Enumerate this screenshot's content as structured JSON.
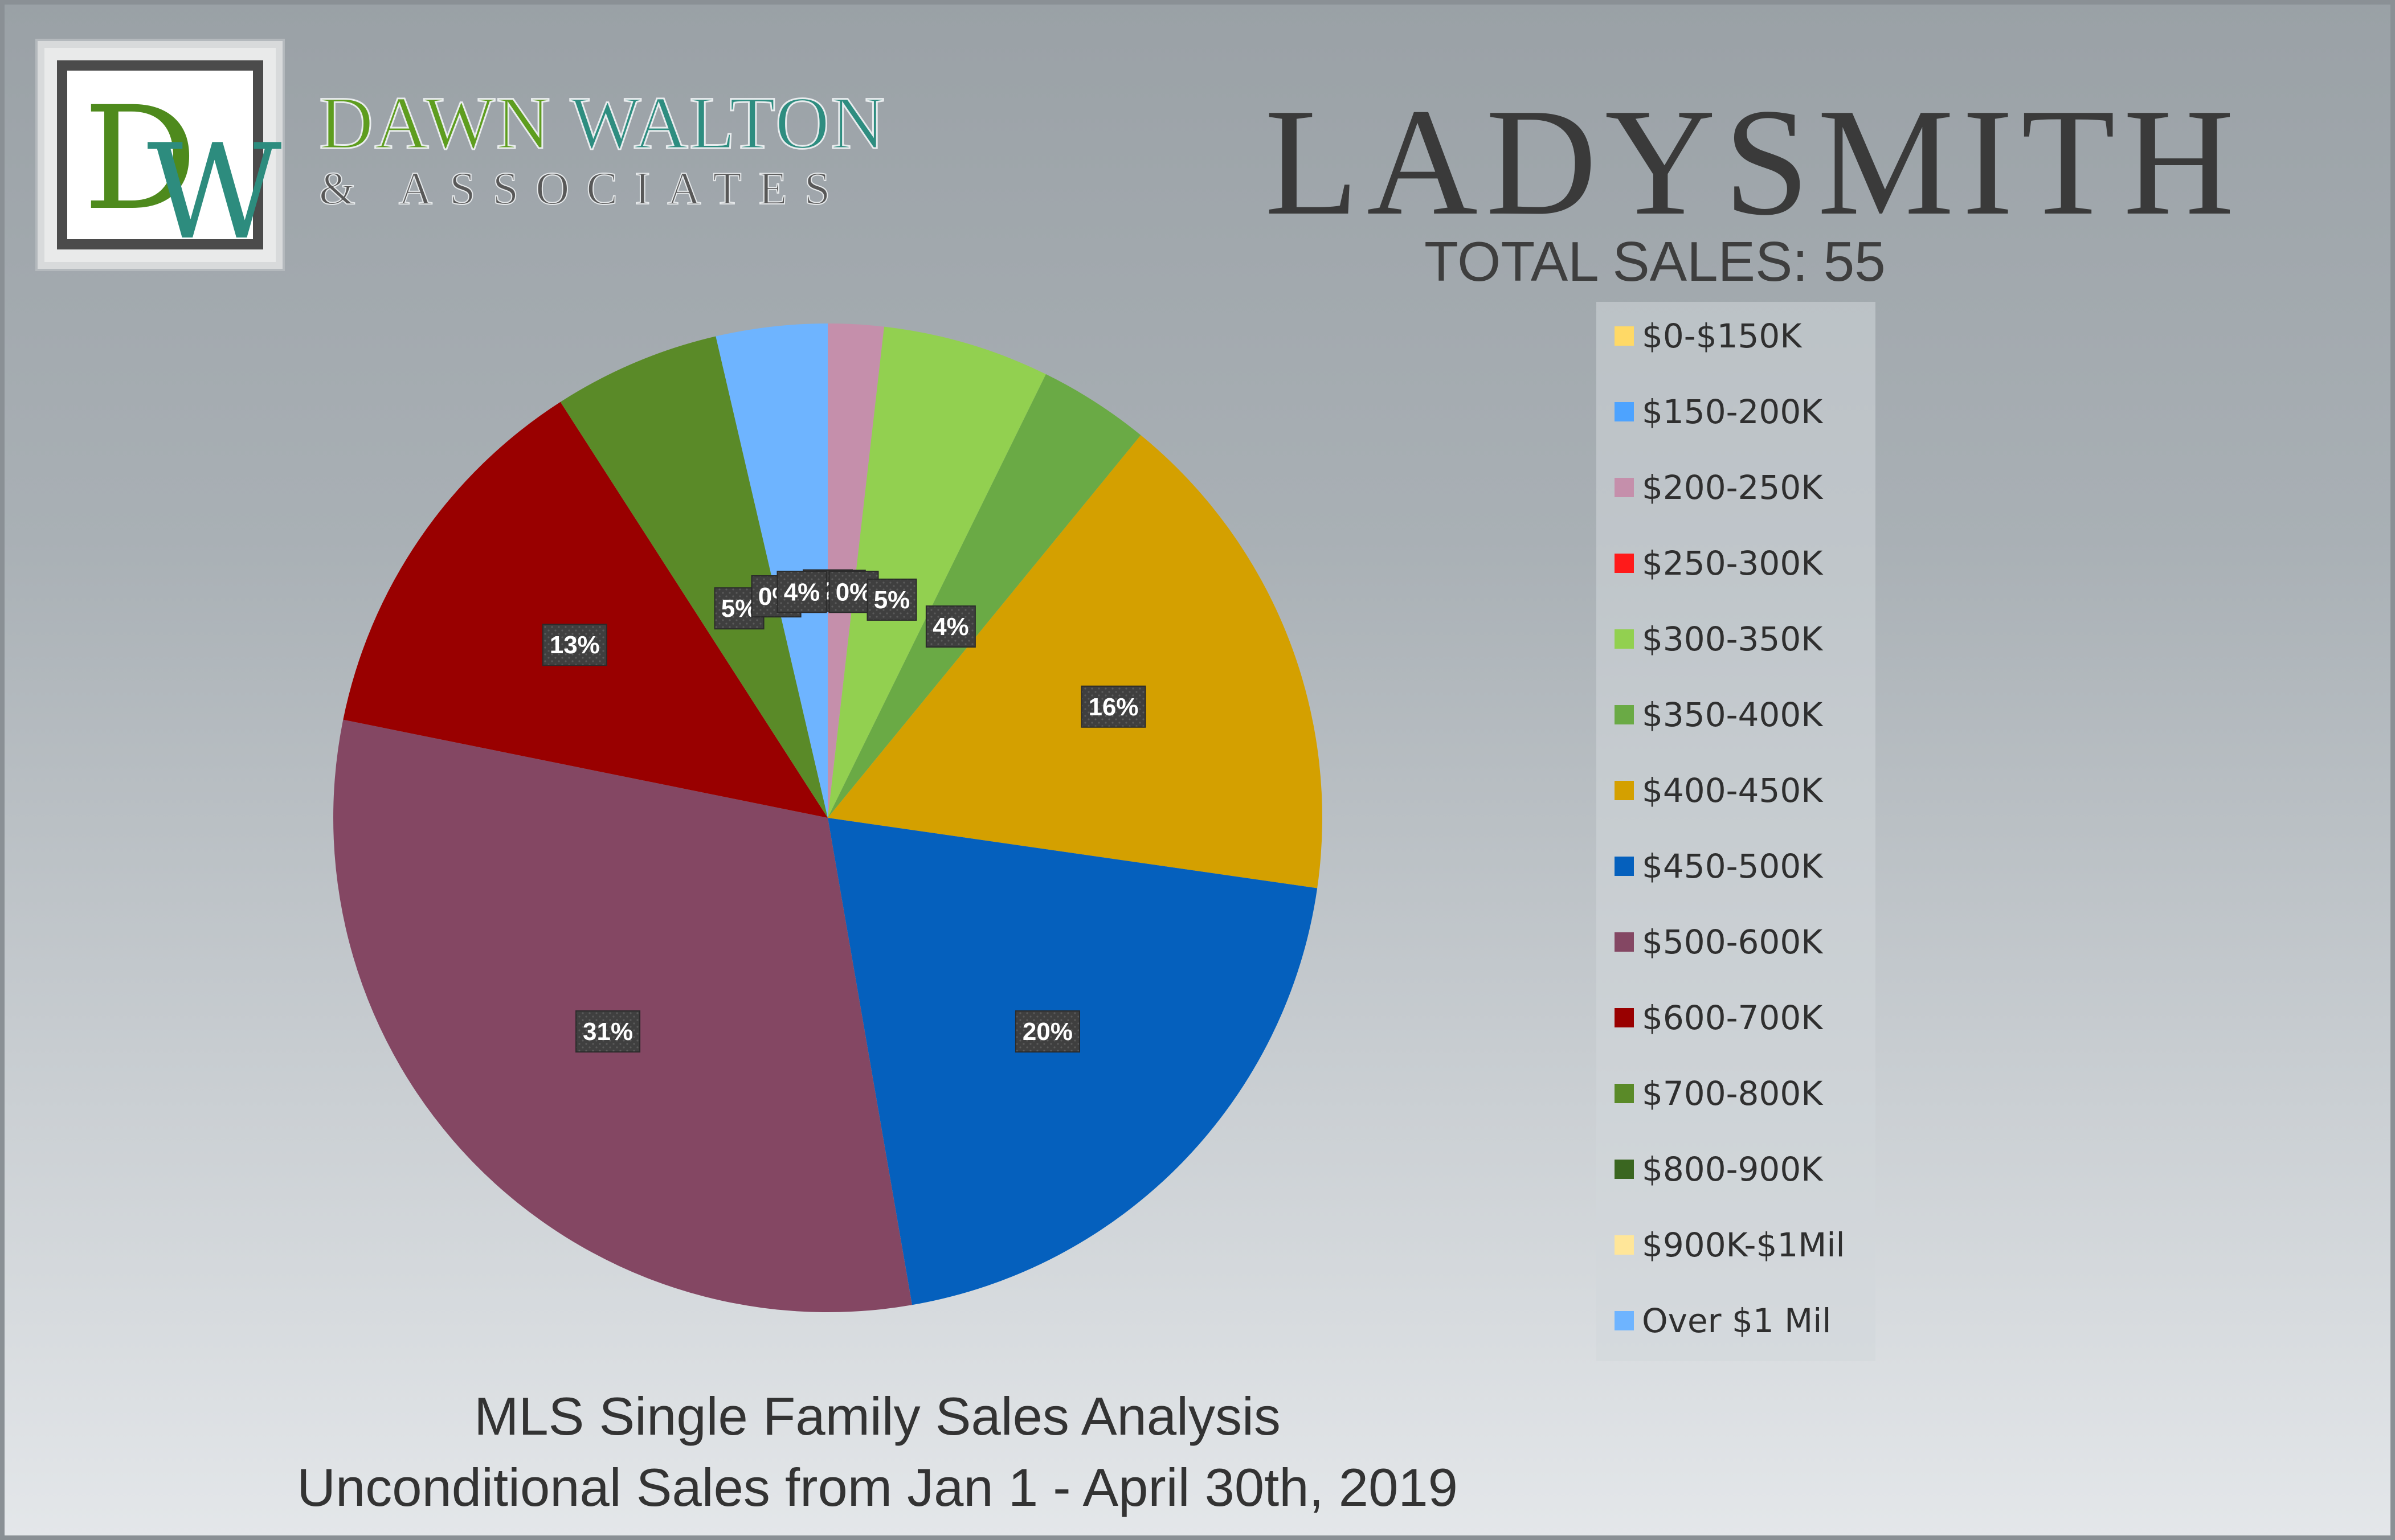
{
  "logo": {
    "monogram_d": "D",
    "monogram_w": "W",
    "brand_first": "DAWN",
    "brand_last": "WALTON",
    "brand_sub": "& ASSOCIATES",
    "colors": {
      "green": "#5e9d1f",
      "teal": "#2e8d80",
      "gray": "#585858"
    }
  },
  "chart_data": {
    "type": "pie",
    "title": "LADYSMITH",
    "subtitle": "TOTAL SALES: 55",
    "footer": [
      "MLS Single Family Sales Analysis",
      "Unconditional Sales from Jan 1 - April 30th, 2019"
    ],
    "legend_position": "right",
    "categories": [
      "$0-$150K",
      "$150-200K",
      "$200-250K",
      "$250-300K",
      "$300-350K",
      "$350-400K",
      "$400-450K",
      "$450-500K",
      "$500-600K",
      "$600-700K",
      "$700-800K",
      "$800-900K",
      "$900K-$1Mil",
      "Over $1 Mil"
    ],
    "values": [
      0,
      0,
      1,
      0,
      3,
      2,
      9,
      11,
      17,
      7,
      3,
      0,
      0,
      2
    ],
    "labels": [
      "0%",
      "0%",
      "2%",
      "0%",
      "5%",
      "4%",
      "16%",
      "20%",
      "31%",
      "13%",
      "5%",
      "0%",
      "0%",
      "4%"
    ],
    "colors": [
      "#ffd966",
      "#4da3ff",
      "#c58fab",
      "#ff1a1a",
      "#92d050",
      "#6aaa45",
      "#d4a000",
      "#0560bd",
      "#844763",
      "#990000",
      "#5a8a28",
      "#3a6620",
      "#ffe699",
      "#6eb4ff"
    ]
  }
}
